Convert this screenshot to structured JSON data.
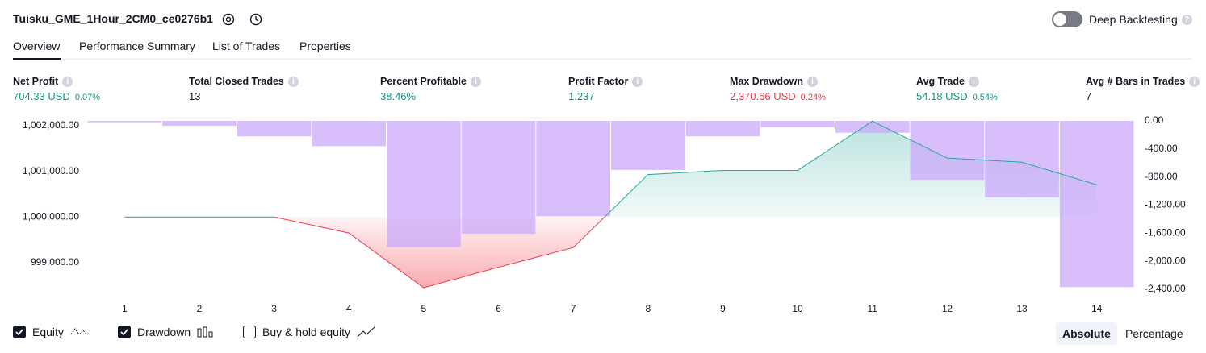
{
  "header": {
    "title": "Tuisku_GME_1Hour_2CM0_ce0276b1",
    "deep_backtesting": "Deep Backtesting"
  },
  "tabs": [
    "Overview",
    "Performance Summary",
    "List of Trades",
    "Properties"
  ],
  "metrics": [
    {
      "label": "Net Profit",
      "value": "704.33 USD",
      "sub": "0.07%",
      "tone": "pos"
    },
    {
      "label": "Total Closed Trades",
      "value": "13",
      "tone": "neutral"
    },
    {
      "label": "Percent Profitable",
      "value": "38.46%",
      "tone": "pos"
    },
    {
      "label": "Profit Factor",
      "value": "1.237",
      "tone": "pos"
    },
    {
      "label": "Max Drawdown",
      "value": "2,370.66 USD",
      "sub": "0.24%",
      "tone": "neg"
    },
    {
      "label": "Avg Trade",
      "value": "54.18 USD",
      "sub": "0.54%",
      "tone": "pos"
    },
    {
      "label": "Avg # Bars in Trades",
      "value": "7",
      "tone": "neutral"
    }
  ],
  "chart_data": {
    "type": "combo",
    "x": [
      1,
      2,
      3,
      4,
      5,
      6,
      7,
      8,
      9,
      10,
      11,
      12,
      13,
      14
    ],
    "xlim": [
      0.5,
      14.5
    ],
    "xticks": [
      1,
      2,
      3,
      4,
      5,
      6,
      7,
      8,
      9,
      10,
      11,
      12,
      13,
      14
    ],
    "ylim": [
      998310,
      1002105
    ],
    "yticks": [
      {
        "value": 999000,
        "label": "999,000.00"
      },
      {
        "value": 1000000,
        "label": "1,000,000.00"
      },
      {
        "value": 1001000,
        "label": "1,001,000.00"
      },
      {
        "value": 1002000,
        "label": "1,002,000.00"
      }
    ],
    "y2lim": [
      -2470,
      0
    ],
    "y2ticks": [
      {
        "value": -2400,
        "label": "-2,400.00"
      },
      {
        "value": -2000,
        "label": "-2,000.00"
      },
      {
        "value": -1600,
        "label": "-1,600.00"
      },
      {
        "value": -1200,
        "label": "-1,200.00"
      },
      {
        "value": -800,
        "label": "-800.00"
      },
      {
        "value": -400,
        "label": "-400.00"
      },
      {
        "value": 0,
        "label": "0.00"
      }
    ],
    "grid": false,
    "series": [
      {
        "name": "Equity",
        "type": "line",
        "color": "#26a69a",
        "negative_color": "#f23645",
        "values": [
          1000000,
          1000000,
          1000000,
          999650,
          998450,
          998900,
          999330,
          1000930,
          1001020,
          1001020,
          1002100,
          1001290,
          1001200,
          1000704
        ]
      },
      {
        "name": "Drawdown",
        "type": "bar",
        "axis": "y2",
        "color": "#c9a6fb",
        "values": [
          -20,
          -70,
          -220,
          -360,
          -1800,
          -1610,
          -1360,
          -700,
          -220,
          -90,
          -170,
          -840,
          -1090,
          -2370
        ]
      }
    ]
  },
  "footer": {
    "buy_hold": "Buy & hold equity",
    "modes": [
      "Absolute",
      "Percentage"
    ]
  }
}
